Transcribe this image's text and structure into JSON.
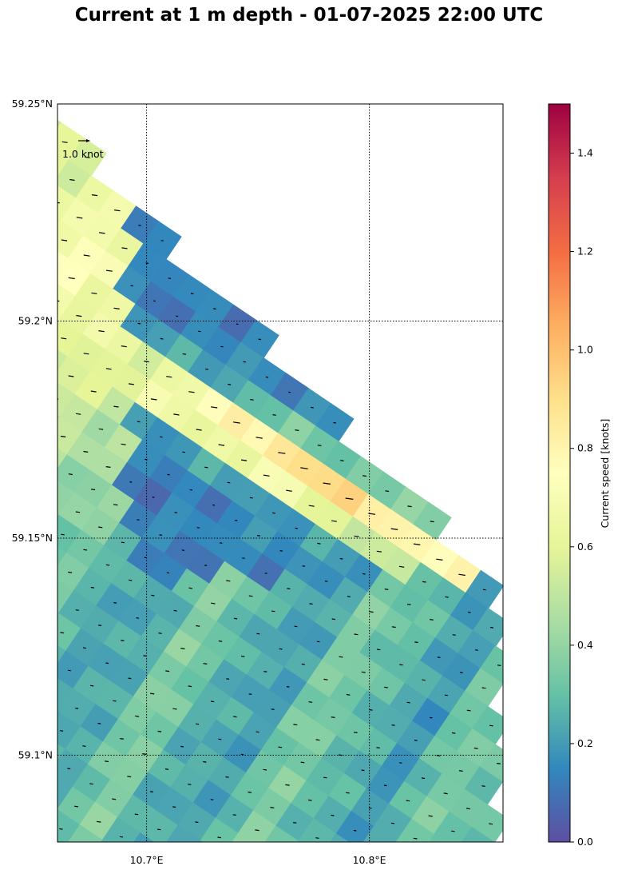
{
  "chart_data": {
    "type": "heatmap",
    "title": "Current at 1 m depth - 01-07-2025 22:00 UTC",
    "x_ticks": [
      {
        "lon": 10.7,
        "label": "10.7°E"
      },
      {
        "lon": 10.8,
        "label": "10.8°E"
      }
    ],
    "y_ticks": [
      {
        "lat": 59.25,
        "label": "59.25°N"
      },
      {
        "lat": 59.2,
        "label": "59.2°N"
      },
      {
        "lat": 59.15,
        "label": "59.15°N"
      },
      {
        "lat": 59.1,
        "label": "59.1°N"
      }
    ],
    "xlim": [
      10.66,
      10.86
    ],
    "ylim": [
      59.08,
      59.25
    ],
    "grid": true,
    "grid_style": "dotted",
    "reference_arrow_label": "1.0 knot",
    "colorbar": {
      "label": "Current speed [knots]",
      "range": [
        0.0,
        1.5
      ],
      "ticks": [
        "0.0",
        "0.2",
        "0.4",
        "0.6",
        "0.8",
        "1.0",
        "1.2",
        "1.4"
      ],
      "colormap": "Spectral_r",
      "colors": [
        "#5e4fa2",
        "#3288bd",
        "#66c2a5",
        "#abdda4",
        "#e6f598",
        "#ffffbf",
        "#fee08b",
        "#fdae61",
        "#f46d43",
        "#d53e4f",
        "#9e0142"
      ]
    },
    "speed_grid_note": "Rotated model grid cells coloured by current speed (knots)"
  }
}
